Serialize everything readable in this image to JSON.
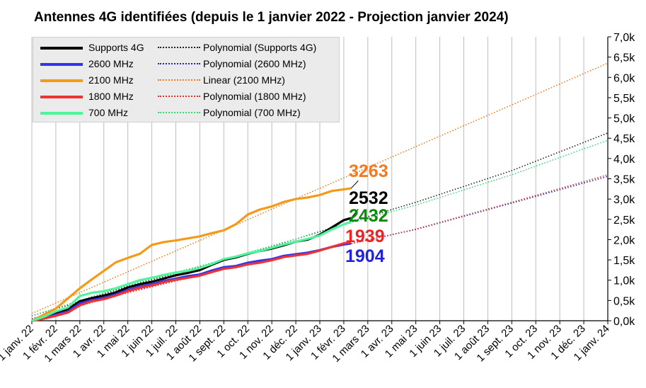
{
  "chart_data": {
    "type": "line",
    "title": "Antennes 4G identifiées (depuis le 1 janvier 2022 - Projection janvier 2024)",
    "x_tick_labels": [
      "1 janv. 22",
      "1 févr. 22",
      "1 mars 22",
      "1 avr. 22",
      "1 mai 22",
      "1 juin 22",
      "1 juil. 22",
      "1 août 22",
      "1 sept. 22",
      "1 oct. 22",
      "1 nov. 22",
      "1 déc. 22",
      "1 janv. 23",
      "1 févr. 23",
      "1 mars 23",
      "1 avr. 23",
      "1 mai 23",
      "1 juin 23",
      "1 juil. 23",
      "1 août 23",
      "1 sept. 23",
      "1 oct. 23",
      "1 nov. 23",
      "1 déc. 23",
      "1 janv. 24"
    ],
    "y_tick_labels": [
      "0,0k",
      "0,5k",
      "1,0k",
      "1,5k",
      "2,0k",
      "2,5k",
      "3,0k",
      "3,5k",
      "4,0k",
      "4,5k",
      "5,0k",
      "5,5k",
      "6,0k",
      "6,5k",
      "7,0k"
    ],
    "ylim": [
      0,
      7000
    ],
    "x_range_months": [
      0,
      24
    ],
    "grid": "vertical",
    "legend_position": "top-left",
    "series": [
      {
        "name": "Supports 4G",
        "color": "#000000",
        "x": [
          0,
          0.5,
          1,
          1.5,
          2,
          2.5,
          3,
          3.5,
          4,
          4.5,
          5,
          5.5,
          6,
          6.5,
          7,
          7.5,
          8,
          8.5,
          9,
          9.5,
          10,
          10.5,
          11,
          11.5,
          12,
          12.5,
          13,
          13.3
        ],
        "y": [
          0,
          80,
          200,
          280,
          480,
          560,
          620,
          700,
          820,
          900,
          960,
          1040,
          1120,
          1180,
          1250,
          1380,
          1500,
          1560,
          1650,
          1720,
          1780,
          1860,
          1950,
          2000,
          2120,
          2300,
          2480,
          2532
        ]
      },
      {
        "name": "2600 MHz",
        "color": "#3333ee",
        "x": [
          0,
          0.5,
          1,
          1.5,
          2,
          2.5,
          3,
          3.5,
          4,
          4.5,
          5,
          5.5,
          6,
          6.5,
          7,
          7.5,
          8,
          8.5,
          9,
          9.5,
          10,
          10.5,
          11,
          11.5,
          12,
          12.5,
          13,
          13.3
        ],
        "y": [
          0,
          60,
          150,
          230,
          430,
          510,
          560,
          650,
          760,
          840,
          900,
          980,
          1040,
          1100,
          1140,
          1240,
          1320,
          1350,
          1430,
          1480,
          1520,
          1600,
          1640,
          1680,
          1740,
          1820,
          1880,
          1904
        ]
      },
      {
        "name": "2100 MHz",
        "color": "#f59a17",
        "x": [
          0,
          0.5,
          1,
          1.5,
          2,
          2.5,
          3,
          3.5,
          4,
          4.5,
          5,
          5.5,
          6,
          6.5,
          7,
          7.5,
          8,
          8.5,
          9,
          9.5,
          10,
          10.5,
          11,
          11.5,
          12,
          12.5,
          13,
          13.3
        ],
        "y": [
          0,
          150,
          300,
          550,
          800,
          1020,
          1230,
          1440,
          1550,
          1650,
          1870,
          1940,
          1980,
          2030,
          2080,
          2160,
          2230,
          2380,
          2620,
          2740,
          2820,
          2930,
          3000,
          3040,
          3100,
          3200,
          3240,
          3263
        ]
      },
      {
        "name": "1800 MHz",
        "color": "#ee3333",
        "x": [
          0,
          0.5,
          1,
          1.5,
          2,
          2.5,
          3,
          3.5,
          4,
          4.5,
          5,
          5.5,
          6,
          6.5,
          7,
          7.5,
          8,
          8.5,
          9,
          9.5,
          10,
          10.5,
          11,
          11.5,
          12,
          12.5,
          13,
          13.3
        ],
        "y": [
          0,
          50,
          120,
          200,
          380,
          480,
          530,
          620,
          730,
          810,
          870,
          950,
          1010,
          1060,
          1110,
          1200,
          1280,
          1320,
          1390,
          1430,
          1490,
          1570,
          1610,
          1650,
          1730,
          1820,
          1910,
          1939
        ]
      },
      {
        "name": "700 MHz",
        "color": "#4ef59a",
        "x": [
          0,
          0.5,
          1,
          1.5,
          2,
          2.5,
          3,
          3.5,
          4,
          4.5,
          5,
          5.5,
          6,
          6.5,
          7,
          7.5,
          8,
          8.5,
          9,
          9.5,
          10,
          10.5,
          11,
          11.5,
          12,
          12.5,
          13,
          13.3
        ],
        "y": [
          0,
          100,
          230,
          330,
          610,
          690,
          730,
          800,
          900,
          1000,
          1060,
          1130,
          1190,
          1230,
          1300,
          1400,
          1520,
          1580,
          1660,
          1720,
          1800,
          1880,
          1950,
          2020,
          2100,
          2250,
          2380,
          2432
        ]
      }
    ],
    "trendlines": [
      {
        "name": "Polynomial (Supports 4G)",
        "color": "#222222",
        "kind": "polynomial",
        "x": [
          0,
          2,
          4,
          6,
          8,
          10,
          12,
          13.3,
          16,
          20,
          24
        ],
        "y": [
          120,
          470,
          850,
          1170,
          1500,
          1830,
          2200,
          2440,
          2920,
          3700,
          4630
        ]
      },
      {
        "name": "Polynomial (2600 MHz)",
        "color": "#2222cc",
        "kind": "polynomial",
        "x": [
          0,
          2,
          4,
          6,
          8,
          10,
          12,
          13.3,
          16,
          20,
          24
        ],
        "y": [
          50,
          380,
          700,
          990,
          1280,
          1510,
          1750,
          1900,
          2250,
          2900,
          3560
        ]
      },
      {
        "name": "Linear (2100 MHz)",
        "color": "#f07a20",
        "kind": "linear",
        "x": [
          0,
          24
        ],
        "y": [
          180,
          6350
        ]
      },
      {
        "name": "Polynomial (1800 MHz)",
        "color": "#dd3333",
        "kind": "polynomial",
        "x": [
          0,
          2,
          4,
          6,
          8,
          10,
          12,
          13.3,
          16,
          20,
          24
        ],
        "y": [
          40,
          370,
          690,
          980,
          1270,
          1500,
          1740,
          1900,
          2260,
          2920,
          3600
        ]
      },
      {
        "name": "Polynomial (700 MHz)",
        "color": "#3ad67a",
        "kind": "polynomial",
        "x": [
          0,
          2,
          4,
          6,
          8,
          10,
          12,
          13.3,
          16,
          20,
          24
        ],
        "y": [
          120,
          500,
          880,
          1190,
          1510,
          1850,
          2180,
          2420,
          2850,
          3600,
          4450
        ]
      }
    ],
    "end_labels": [
      {
        "text": "3263",
        "color": "#f47a20",
        "value": 3263
      },
      {
        "text": "2532",
        "color": "#000000",
        "value": 2532
      },
      {
        "text": "2432",
        "color": "#0b8a0b",
        "value": 2432
      },
      {
        "text": "1939",
        "color": "#ee2222",
        "value": 1939
      },
      {
        "text": "1904",
        "color": "#2222dd",
        "value": 1904
      }
    ]
  },
  "legend": {
    "items": [
      {
        "label": "Supports 4G",
        "color": "#000000",
        "style": "solid"
      },
      {
        "label": "2600 MHz",
        "color": "#3333ee",
        "style": "solid"
      },
      {
        "label": "2100 MHz",
        "color": "#f59a17",
        "style": "solid"
      },
      {
        "label": "1800 MHz",
        "color": "#ee3333",
        "style": "solid"
      },
      {
        "label": "700 MHz",
        "color": "#4ef59a",
        "style": "solid"
      },
      {
        "label": "Polynomial (Supports 4G)",
        "color": "#222222",
        "style": "dotted"
      },
      {
        "label": "Polynomial (2600 MHz)",
        "color": "#2222cc",
        "style": "dotted"
      },
      {
        "label": "Linear (2100 MHz)",
        "color": "#f07a20",
        "style": "dotted"
      },
      {
        "label": "Polynomial (1800 MHz)",
        "color": "#dd3333",
        "style": "dotted"
      },
      {
        "label": "Polynomial (700 MHz)",
        "color": "#3ad67a",
        "style": "dotted"
      }
    ]
  }
}
